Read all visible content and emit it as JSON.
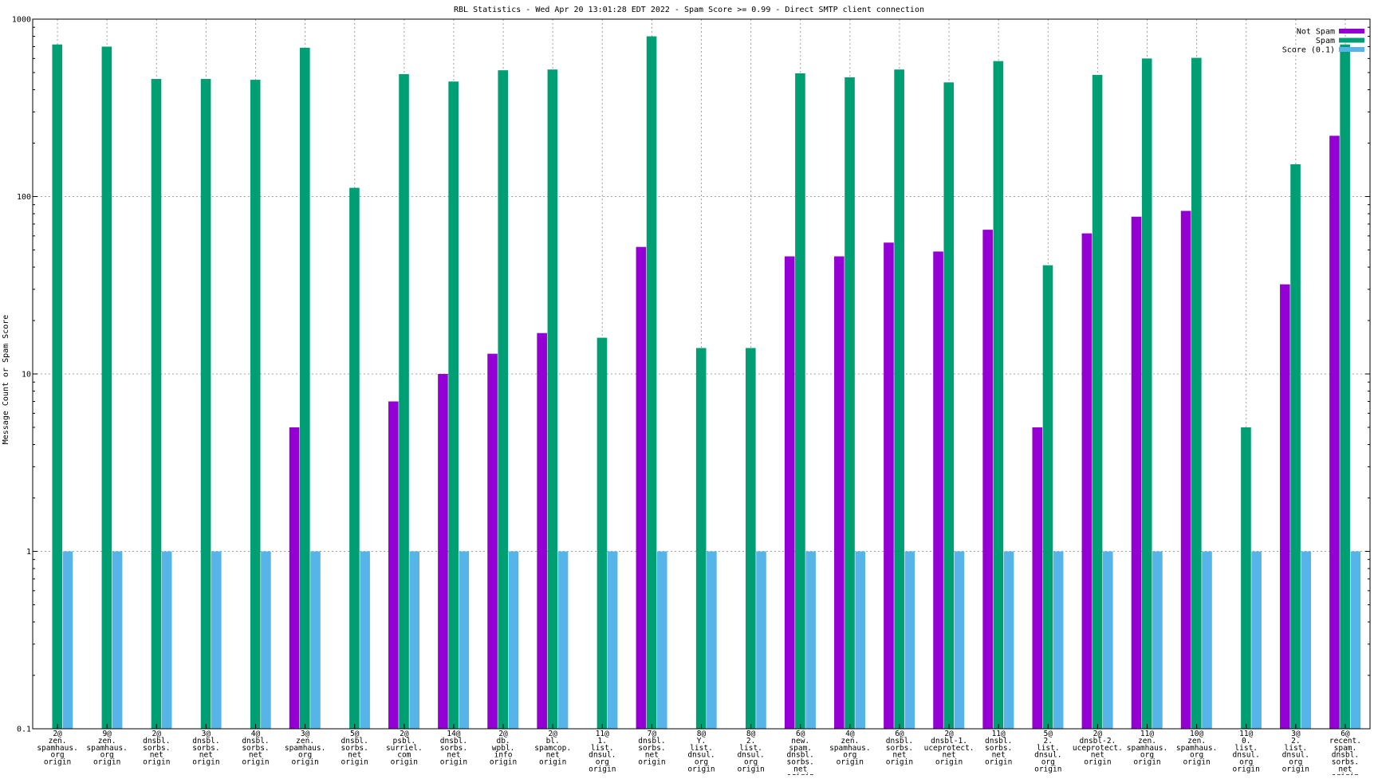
{
  "chart_data": {
    "type": "bar",
    "title": "RBL Statistics - Wed Apr 20 13:01:28 EDT 2022 - Spam Score >= 0.99 - Direct SMTP client connection",
    "ylabel": "Message Count or Spam Score",
    "xlabel": "",
    "yscale": "log",
    "ylim": [
      0.1,
      1000
    ],
    "yticks": [
      "1000",
      "100",
      "10",
      "1",
      "0.1"
    ],
    "grid": true,
    "legend_position": "top-right",
    "categories": [
      [
        "2@",
        "zen.",
        "spamhaus.",
        "org",
        "origin"
      ],
      [
        "9@",
        "zen.",
        "spamhaus.",
        "org",
        "origin"
      ],
      [
        "2@",
        "dnsbl.",
        "sorbs.",
        "net",
        "origin"
      ],
      [
        "3@",
        "dnsbl.",
        "sorbs.",
        "net",
        "origin"
      ],
      [
        "4@",
        "dnsbl.",
        "sorbs.",
        "net",
        "origin"
      ],
      [
        "3@",
        "zen.",
        "spamhaus.",
        "org",
        "origin"
      ],
      [
        "5@",
        "dnsbl.",
        "sorbs.",
        "net",
        "origin"
      ],
      [
        "2@",
        "psbl.",
        "surriel.",
        "com",
        "origin"
      ],
      [
        "14@",
        "dnsbl.",
        "sorbs.",
        "net",
        "origin"
      ],
      [
        "2@",
        "db.",
        "wpbl.",
        "info",
        "origin"
      ],
      [
        "2@",
        "bl.",
        "spamcop.",
        "net",
        "origin"
      ],
      [
        "11@",
        "1.",
        "list.",
        "dnsul.",
        "org",
        "origin"
      ],
      [
        "7@",
        "dnsbl.",
        "sorbs.",
        "net",
        "origin"
      ],
      [
        "8@",
        "Y.",
        "list.",
        "dnsul.",
        "org",
        "origin"
      ],
      [
        "8@",
        "2.",
        "list.",
        "dnsul.",
        "org",
        "origin"
      ],
      [
        "6@",
        "new.",
        "spam.",
        "dnsbl.",
        "sorbs.",
        "net",
        "origin"
      ],
      [
        "4@",
        "zen.",
        "spamhaus.",
        "org",
        "origin"
      ],
      [
        "6@",
        "dnsbl.",
        "sorbs.",
        "net",
        "origin"
      ],
      [
        "2@",
        "dnsbl-1.",
        "uceprotect.",
        "net",
        "origin"
      ],
      [
        "11@",
        "dnsbl.",
        "sorbs.",
        "net",
        "origin"
      ],
      [
        "5@",
        "2.",
        "list.",
        "dnsul.",
        "org",
        "origin"
      ],
      [
        "2@",
        "dnsbl-2.",
        "uceprotect.",
        "net",
        "origin"
      ],
      [
        "11@",
        "zen.",
        "spamhaus.",
        "org",
        "origin"
      ],
      [
        "10@",
        "zen.",
        "spamhaus.",
        "org",
        "origin"
      ],
      [
        "11@",
        "0.",
        "list.",
        "dnsul.",
        "org",
        "origin"
      ],
      [
        "3@",
        "2.",
        "list.",
        "dnsul.",
        "org",
        "origin"
      ],
      [
        "6@",
        "recent.",
        "spam.",
        "dnsbl.",
        "sorbs.",
        "net",
        "origin"
      ]
    ],
    "series": [
      {
        "name": "Not Spam",
        "color": "#9400d3",
        "values": [
          null,
          null,
          null,
          null,
          null,
          5,
          null,
          7,
          10,
          13,
          17,
          null,
          52,
          null,
          null,
          46,
          46,
          55,
          49,
          65,
          5,
          62,
          77,
          83,
          null,
          32,
          220
        ]
      },
      {
        "name": "Spam",
        "color": "#009e73",
        "values": [
          720,
          700,
          460,
          460,
          455,
          690,
          112,
          490,
          445,
          515,
          520,
          16,
          800,
          14,
          14,
          495,
          470,
          520,
          440,
          580,
          41,
          485,
          600,
          605,
          5,
          152,
          720
        ]
      },
      {
        "name": "Score (0.1)",
        "color": "#56b4e9",
        "values": [
          1,
          1,
          1,
          1,
          1,
          1,
          1,
          1,
          1,
          1,
          1,
          1,
          1,
          1,
          1,
          1,
          1,
          1,
          1,
          1,
          1,
          1,
          1,
          1,
          1,
          1,
          1
        ]
      }
    ]
  }
}
